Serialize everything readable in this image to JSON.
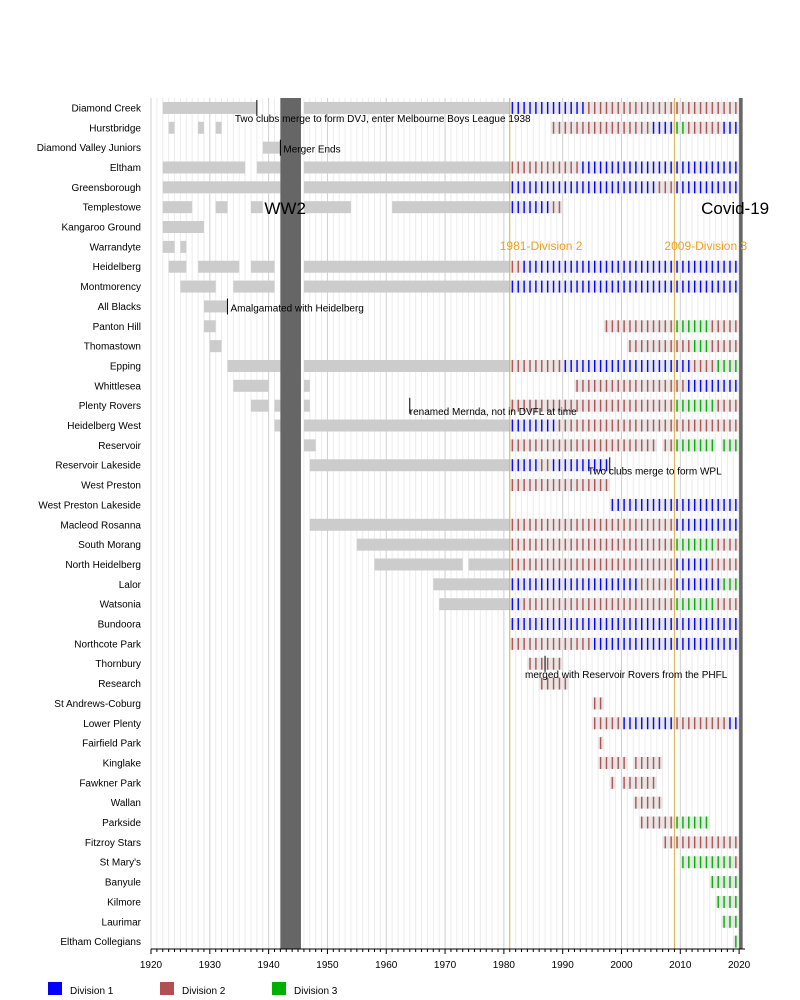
{
  "chart_data": {
    "type": "timeline",
    "title": "",
    "xlabel": "",
    "ylabel": "",
    "xlim": [
      1920,
      2021
    ],
    "x_ticks": [
      1920,
      1930,
      1940,
      1950,
      1960,
      1970,
      1980,
      1990,
      2000,
      2010,
      2020
    ],
    "grid": true,
    "legend_position": "bottom-left",
    "colors": {
      "Division 1": "#0000ff",
      "Division 2": "#b05050",
      "Division 3": "#00b000",
      "Pre-1981": "#cccccc",
      "Period": "#666666",
      "Era line": "#e0b050"
    },
    "legend": [
      {
        "name": "Division 1",
        "color": "#0000ff"
      },
      {
        "name": "Division 2",
        "color": "#b05050"
      },
      {
        "name": "Division 3",
        "color": "#00b000"
      }
    ],
    "periods": [
      {
        "label": "WW2",
        "start": 1942,
        "end": 1945.5
      },
      {
        "label": "Covid-19",
        "start": 2020,
        "end": 2020.6
      }
    ],
    "era_lines": [
      {
        "label": "1981-Division 2",
        "year": 1981
      },
      {
        "label": "2009-Division 3",
        "year": 2009
      }
    ],
    "clubs": [
      {
        "name": "Diamond Creek",
        "segments": [
          [
            1922,
            1938,
            "grey"
          ],
          [
            1946,
            1981,
            "grey"
          ],
          [
            1981,
            1994,
            "1"
          ],
          [
            1994,
            2009,
            "2"
          ],
          [
            2009,
            2020,
            "2"
          ]
        ]
      },
      {
        "name": "Hurstbridge",
        "segments": [
          [
            1923,
            1924,
            "grey"
          ],
          [
            1928,
            1929,
            "grey"
          ],
          [
            1931,
            1932,
            "grey"
          ],
          [
            1988,
            2005,
            "2"
          ],
          [
            2005,
            2009,
            "1"
          ],
          [
            2009,
            2011,
            "3"
          ],
          [
            2011,
            2017,
            "2"
          ],
          [
            2017,
            2020,
            "1"
          ]
        ]
      },
      {
        "name": "Diamond Valley Juniors",
        "segments": [
          [
            1939,
            1942,
            "grey"
          ]
        ]
      },
      {
        "name": "Eltham",
        "segments": [
          [
            1922,
            1936,
            "grey"
          ],
          [
            1938,
            1942,
            "grey"
          ],
          [
            1946,
            1981,
            "grey"
          ],
          [
            1981,
            1993,
            "2"
          ],
          [
            1993,
            2020,
            "1"
          ]
        ]
      },
      {
        "name": "Greensborough",
        "segments": [
          [
            1922,
            1942,
            "grey"
          ],
          [
            1946,
            1981,
            "grey"
          ],
          [
            1981,
            2006,
            "1"
          ],
          [
            2006,
            2009,
            "2"
          ],
          [
            2009,
            2020,
            "1"
          ]
        ]
      },
      {
        "name": "Templestowe",
        "segments": [
          [
            1922,
            1927,
            "grey"
          ],
          [
            1931,
            1933,
            "grey"
          ],
          [
            1937,
            1939,
            "grey"
          ],
          [
            1946,
            1954,
            "grey"
          ],
          [
            1961,
            1981,
            "grey"
          ],
          [
            1981,
            1988,
            "1"
          ],
          [
            1988,
            1990,
            "2"
          ]
        ]
      },
      {
        "name": "Kangaroo Ground",
        "segments": [
          [
            1922,
            1929,
            "grey"
          ]
        ]
      },
      {
        "name": "Warrandyte",
        "segments": [
          [
            1922,
            1924,
            "grey"
          ],
          [
            1925,
            1926,
            "grey"
          ]
        ]
      },
      {
        "name": "Heidelberg",
        "segments": [
          [
            1923,
            1926,
            "grey"
          ],
          [
            1928,
            1935,
            "grey"
          ],
          [
            1937,
            1941,
            "grey"
          ],
          [
            1946,
            1981,
            "grey"
          ],
          [
            1981,
            1983,
            "2"
          ],
          [
            1983,
            2020,
            "1"
          ]
        ]
      },
      {
        "name": "Montmorency",
        "segments": [
          [
            1925,
            1931,
            "grey"
          ],
          [
            1934,
            1941,
            "grey"
          ],
          [
            1946,
            1981,
            "grey"
          ],
          [
            1981,
            2020,
            "1"
          ]
        ]
      },
      {
        "name": "All Blacks",
        "segments": [
          [
            1929,
            1933,
            "grey"
          ]
        ]
      },
      {
        "name": "Panton Hill",
        "segments": [
          [
            1929,
            1931,
            "grey"
          ],
          [
            1997,
            2009,
            "2"
          ],
          [
            2009,
            2015,
            "3"
          ],
          [
            2015,
            2020,
            "2"
          ]
        ]
      },
      {
        "name": "Thomastown",
        "segments": [
          [
            1930,
            1932,
            "grey"
          ],
          [
            2001,
            2012,
            "2"
          ],
          [
            2012,
            2015,
            "3"
          ],
          [
            2015,
            2020,
            "2"
          ]
        ]
      },
      {
        "name": "Epping",
        "segments": [
          [
            1933,
            1942,
            "grey"
          ],
          [
            1946,
            1981,
            "grey"
          ],
          [
            1981,
            1990,
            "2"
          ],
          [
            1990,
            2012,
            "1"
          ],
          [
            2012,
            2016,
            "2"
          ],
          [
            2016,
            2020,
            "3"
          ]
        ]
      },
      {
        "name": "Whittlesea",
        "segments": [
          [
            1934,
            1940,
            "grey"
          ],
          [
            1946,
            1947,
            "grey"
          ],
          [
            1992,
            2011,
            "2"
          ],
          [
            2011,
            2020,
            "1"
          ]
        ]
      },
      {
        "name": "Plenty Rovers",
        "segments": [
          [
            1937,
            1940,
            "grey"
          ],
          [
            1941,
            1942,
            "grey"
          ],
          [
            1946,
            1947,
            "grey"
          ],
          [
            1981,
            2009,
            "2"
          ],
          [
            2009,
            2016,
            "3"
          ],
          [
            2016,
            2020,
            "2"
          ]
        ]
      },
      {
        "name": "Heidelberg West",
        "segments": [
          [
            1941,
            1942,
            "grey"
          ],
          [
            1946,
            1981,
            "grey"
          ],
          [
            1981,
            1989,
            "1"
          ],
          [
            1989,
            2020,
            "2"
          ]
        ]
      },
      {
        "name": "Reservoir",
        "segments": [
          [
            1946,
            1948,
            "grey"
          ],
          [
            1981,
            2006,
            "2"
          ],
          [
            2007,
            2009,
            "2"
          ],
          [
            2009,
            2016,
            "3"
          ],
          [
            2017,
            2020,
            "3"
          ]
        ]
      },
      {
        "name": "Reservoir Lakeside",
        "segments": [
          [
            1947,
            1981,
            "grey"
          ],
          [
            1981,
            1986,
            "1"
          ],
          [
            1986,
            1988,
            "2"
          ],
          [
            1988,
            1998,
            "1"
          ]
        ]
      },
      {
        "name": "West Preston",
        "segments": [
          [
            1981,
            1989,
            "2"
          ],
          [
            1989,
            1998,
            "2"
          ]
        ]
      },
      {
        "name": "West Preston Lakeside",
        "segments": [
          [
            1998,
            2020,
            "1"
          ]
        ]
      },
      {
        "name": "Macleod Rosanna",
        "segments": [
          [
            1947,
            1981,
            "grey"
          ],
          [
            1981,
            2009,
            "2"
          ],
          [
            2009,
            2020,
            "1"
          ]
        ]
      },
      {
        "name": "South Morang",
        "segments": [
          [
            1955,
            1981,
            "grey"
          ],
          [
            1981,
            2009,
            "2"
          ],
          [
            2009,
            2016,
            "3"
          ],
          [
            2016,
            2020,
            "2"
          ]
        ]
      },
      {
        "name": "North Heidelberg",
        "segments": [
          [
            1958,
            1973,
            "grey"
          ],
          [
            1974,
            1981,
            "grey"
          ],
          [
            1981,
            2009,
            "2"
          ],
          [
            2009,
            2015,
            "1"
          ],
          [
            2015,
            2020,
            "2"
          ]
        ]
      },
      {
        "name": "Lalor",
        "segments": [
          [
            1968,
            1981,
            "grey"
          ],
          [
            1981,
            2003,
            "1"
          ],
          [
            2003,
            2009,
            "2"
          ],
          [
            2009,
            2017,
            "1"
          ],
          [
            2017,
            2020,
            "3"
          ]
        ]
      },
      {
        "name": "Watsonia",
        "segments": [
          [
            1969,
            1981,
            "grey"
          ],
          [
            1981,
            1983,
            "1"
          ],
          [
            1983,
            2009,
            "2"
          ],
          [
            2009,
            2016,
            "3"
          ],
          [
            2016,
            2020,
            "2"
          ]
        ]
      },
      {
        "name": "Bundoora",
        "segments": [
          [
            1981,
            2020,
            "1"
          ]
        ]
      },
      {
        "name": "Northcote Park",
        "segments": [
          [
            1981,
            1995,
            "2"
          ],
          [
            1995,
            2020,
            "1"
          ]
        ]
      },
      {
        "name": "Thornbury",
        "segments": [
          [
            1984,
            1990,
            "2"
          ]
        ]
      },
      {
        "name": "Research",
        "segments": [
          [
            1986,
            1991,
            "2"
          ]
        ]
      },
      {
        "name": "St Andrews-Coburg",
        "segments": [
          [
            1995,
            1997,
            "2"
          ]
        ]
      },
      {
        "name": "Lower Plenty",
        "segments": [
          [
            1995,
            2000,
            "2"
          ],
          [
            2000,
            2009,
            "1"
          ],
          [
            2009,
            2018,
            "2"
          ],
          [
            2018,
            2020,
            "1"
          ]
        ]
      },
      {
        "name": "Fairfield Park",
        "segments": [
          [
            1996,
            1997,
            "2"
          ]
        ]
      },
      {
        "name": "Kinglake",
        "segments": [
          [
            1996,
            2001,
            "2"
          ],
          [
            2002,
            2007,
            "2"
          ]
        ]
      },
      {
        "name": "Fawkner Park",
        "segments": [
          [
            1998,
            1999,
            "2"
          ],
          [
            2000,
            2006,
            "2"
          ]
        ]
      },
      {
        "name": "Wallan",
        "segments": [
          [
            2002,
            2007,
            "2"
          ]
        ]
      },
      {
        "name": "Parkside",
        "segments": [
          [
            2003,
            2009,
            "2"
          ],
          [
            2009,
            2015,
            "3"
          ]
        ]
      },
      {
        "name": "Fitzroy Stars",
        "segments": [
          [
            2007,
            2020,
            "2"
          ]
        ]
      },
      {
        "name": "St Mary's",
        "segments": [
          [
            2010,
            2019,
            "3"
          ],
          [
            2019,
            2020,
            "2"
          ]
        ]
      },
      {
        "name": "Banyule",
        "segments": [
          [
            2015,
            2020,
            "3"
          ]
        ]
      },
      {
        "name": "Kilmore",
        "segments": [
          [
            2016,
            2020,
            "3"
          ]
        ]
      },
      {
        "name": "Laurimar",
        "segments": [
          [
            2017,
            2020,
            "3"
          ]
        ]
      },
      {
        "name": "Eltham Collegians",
        "segments": [
          [
            2019,
            2020,
            "3"
          ]
        ]
      }
    ],
    "annotations": [
      {
        "text": "Two clubs merge to form DVJ, enter Melbourne Boys League 1938",
        "year": 1938,
        "row": "Diamond Creek"
      },
      {
        "text": "Merger Ends",
        "year": 1942,
        "row": "Diamond Valley Juniors"
      },
      {
        "text": "Amalgamated with Heidelberg",
        "year": 1933,
        "row": "All Blacks"
      },
      {
        "text": "renamed Mernda, not in DVFL at time",
        "year": 1964,
        "row": "Plenty Rovers"
      },
      {
        "text": "Two clubs merge to form WPL",
        "year": 1998,
        "row": "Reservoir Lakeside"
      },
      {
        "text": "merged with Reservoir Rovers from the PHFL",
        "year": 1987,
        "row": "Thornbury"
      }
    ]
  }
}
